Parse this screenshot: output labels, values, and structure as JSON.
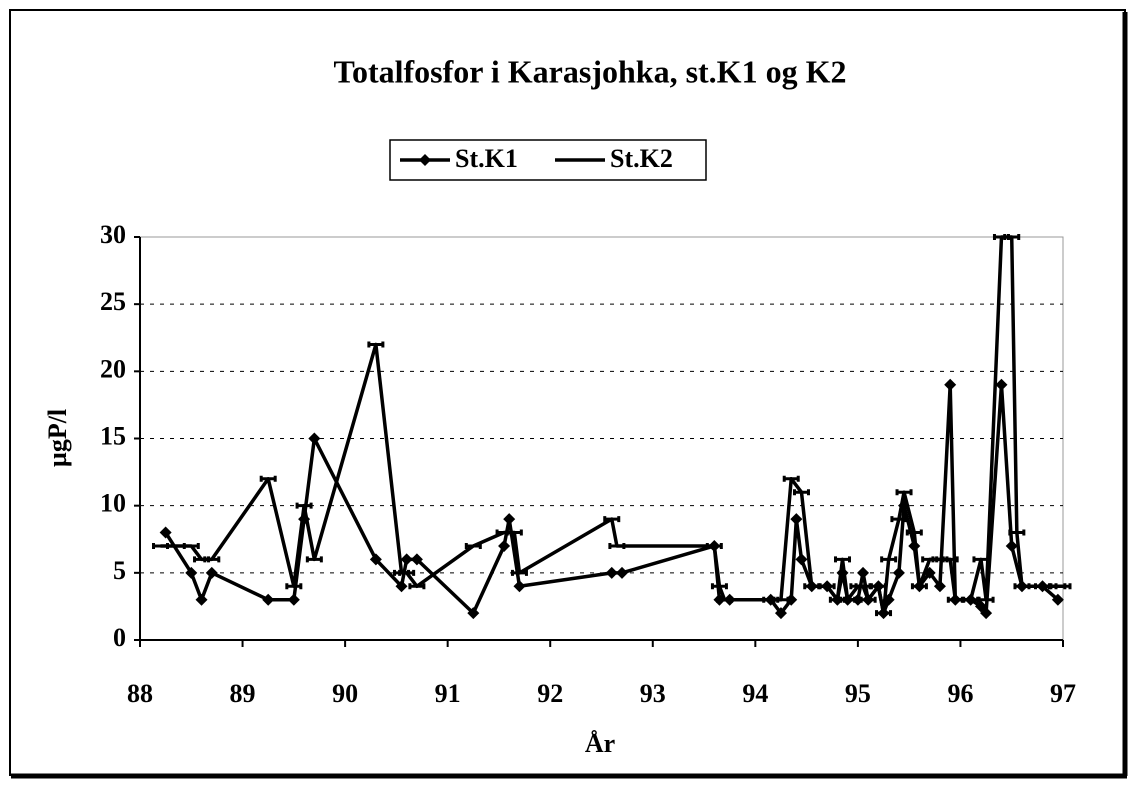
{
  "chart_data": {
    "type": "line",
    "title": "Totalfosfor i Karasjohka, st.K1 og K2",
    "x_label": "År",
    "y_label": "µgP/l",
    "xlim": [
      88,
      97
    ],
    "xticks": [
      88,
      89,
      90,
      91,
      92,
      93,
      94,
      95,
      96,
      97
    ],
    "ylim": [
      0,
      30
    ],
    "yticks": [
      0,
      5,
      10,
      15,
      20,
      25,
      30
    ],
    "grid": true,
    "legend": "top",
    "series": [
      {
        "name": "St.K1",
        "color": "#000000",
        "marker": "diamond",
        "x": [
          88.25,
          88.5,
          88.6,
          88.7,
          89.25,
          89.5,
          89.6,
          89.7,
          90.3,
          90.55,
          90.6,
          90.7,
          91.25,
          91.55,
          91.6,
          91.7,
          92.6,
          92.7,
          93.6,
          93.65,
          93.75,
          94.15,
          94.25,
          94.35,
          94.4,
          94.45,
          94.55,
          94.7,
          94.8,
          94.85,
          94.9,
          95.0,
          95.05,
          95.1,
          95.2,
          95.25,
          95.3,
          95.4,
          95.45,
          95.55,
          95.6,
          95.7,
          95.8,
          95.9,
          95.95,
          96.1,
          96.2,
          96.25,
          96.4,
          96.5,
          96.6,
          96.8,
          96.95
        ],
        "values": [
          8,
          5,
          3,
          5,
          3,
          3,
          9,
          15,
          6,
          4,
          6,
          6,
          2,
          7,
          9,
          4,
          5,
          5,
          7,
          3,
          3,
          3,
          2,
          3,
          9,
          6,
          4,
          4,
          3,
          5,
          3,
          3,
          5,
          3,
          4,
          2,
          3,
          5,
          10,
          7,
          4,
          5,
          4,
          19,
          3,
          3,
          2.5,
          2,
          19,
          7,
          4,
          4,
          3
        ]
      },
      {
        "name": "St.K2",
        "color": "#000000",
        "marker": "dash",
        "x": [
          88.2,
          88.5,
          88.6,
          88.7,
          89.25,
          89.5,
          89.6,
          89.7,
          90.3,
          90.55,
          90.6,
          90.7,
          91.25,
          91.55,
          91.65,
          91.7,
          92.6,
          92.65,
          93.6,
          93.65,
          93.7,
          94.15,
          94.25,
          94.35,
          94.45,
          94.55,
          94.7,
          94.8,
          94.85,
          94.9,
          95.0,
          95.05,
          95.1,
          95.2,
          95.25,
          95.3,
          95.4,
          95.45,
          95.55,
          95.6,
          95.7,
          95.8,
          95.9,
          95.95,
          96.1,
          96.2,
          96.25,
          96.4,
          96.5,
          96.55,
          96.6,
          96.8,
          96.95,
          97.0
        ],
        "values": [
          7,
          7,
          6,
          6,
          12,
          4,
          10,
          6,
          22,
          5,
          5,
          4,
          7,
          8,
          8,
          5,
          9,
          7,
          7,
          4,
          3,
          3,
          3,
          12,
          11,
          4,
          4,
          3,
          6,
          3,
          4,
          4,
          3,
          4,
          2,
          6,
          9,
          11,
          8,
          4,
          6,
          6,
          6,
          3,
          3,
          6,
          3,
          30,
          30,
          8,
          4,
          4,
          4,
          4
        ]
      }
    ]
  }
}
